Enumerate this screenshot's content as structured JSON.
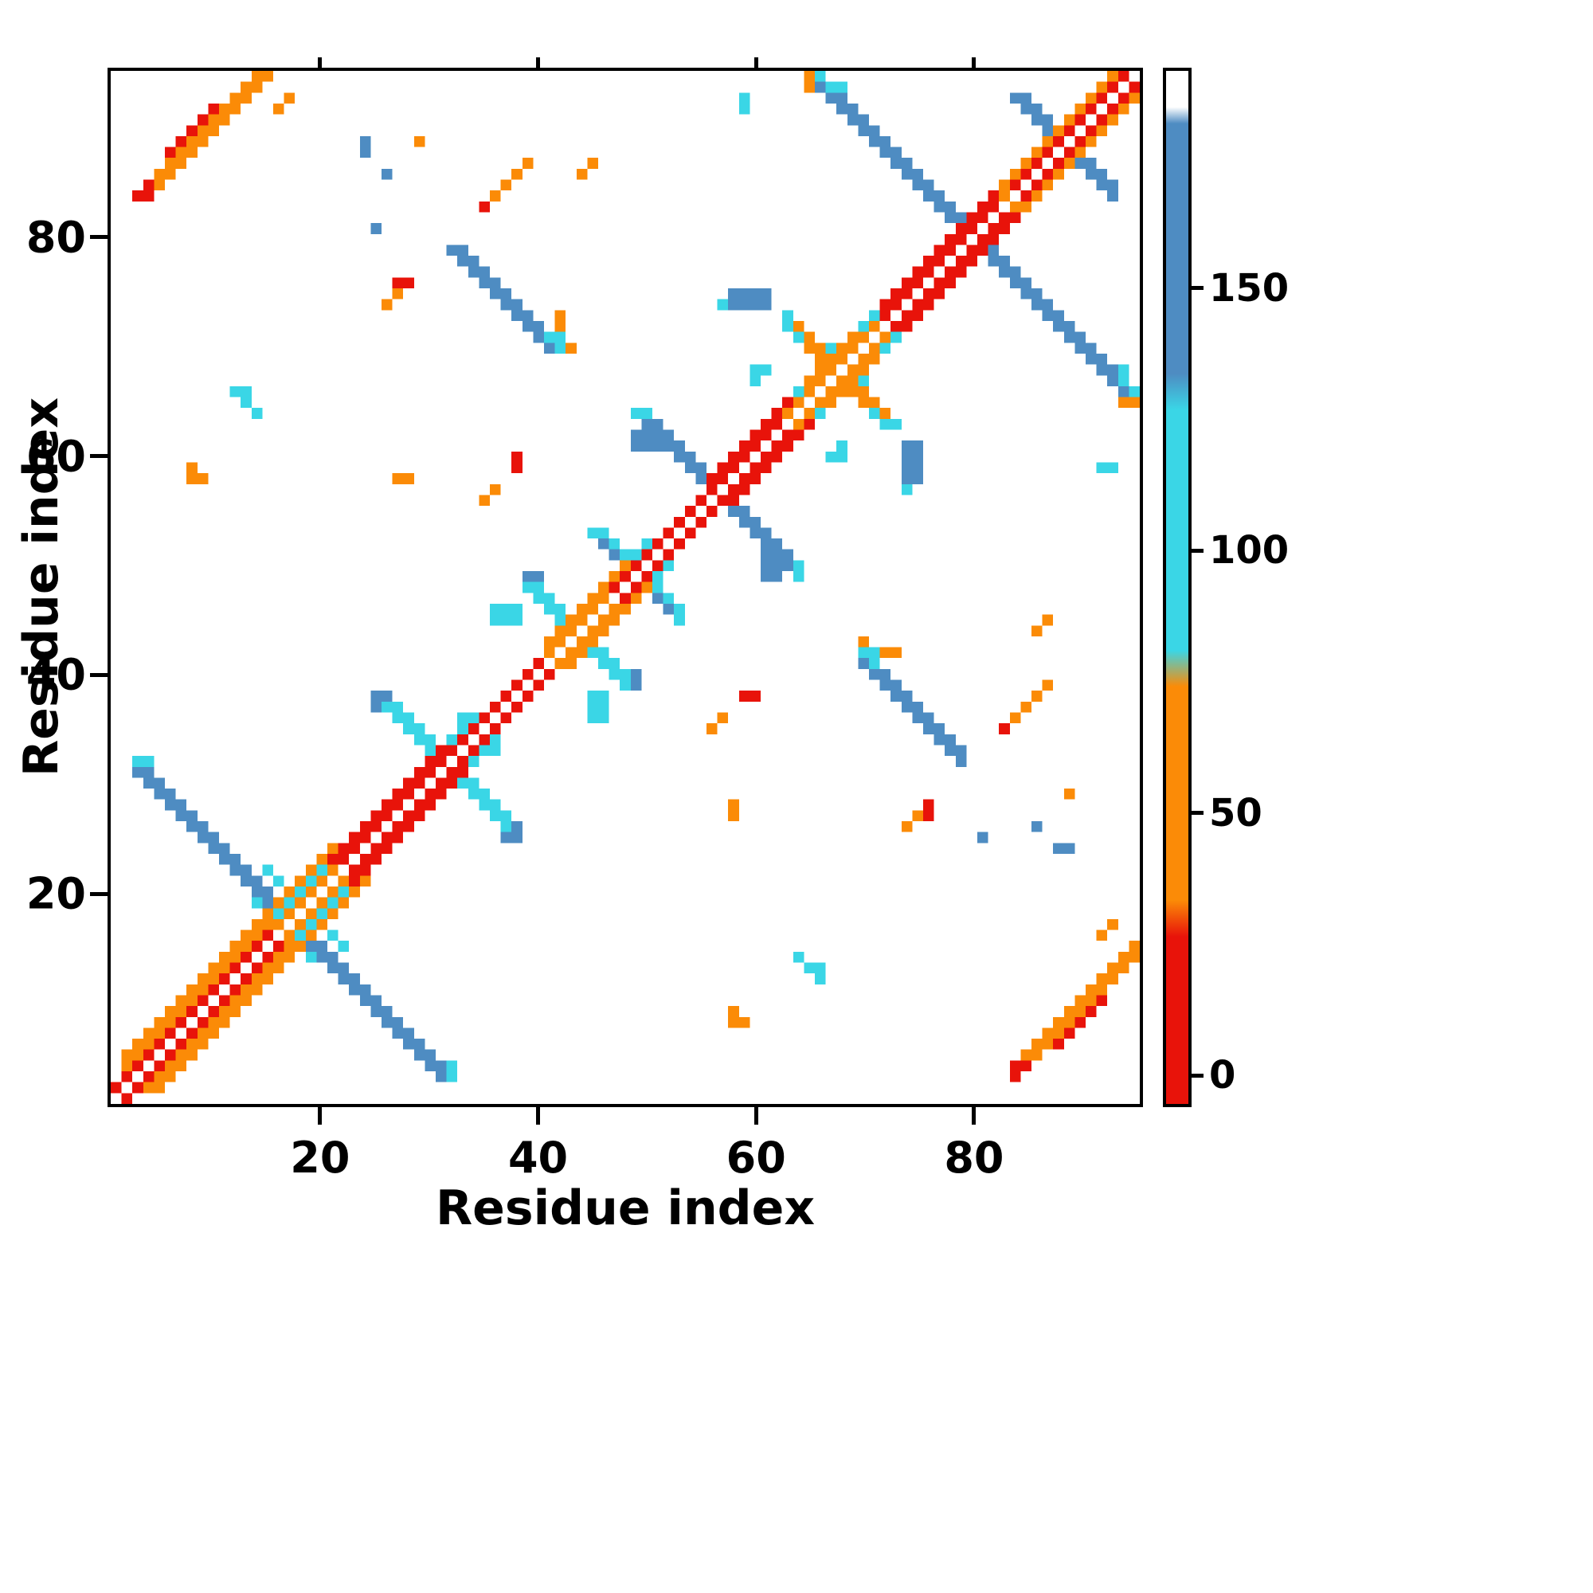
{
  "axes": {
    "x_label": "Residue index",
    "y_label": "Residue index",
    "x_ticks": [
      20,
      40,
      60,
      80
    ],
    "y_ticks": [
      20,
      40,
      60,
      80
    ]
  },
  "colorbar": {
    "ticks": [
      0,
      50,
      100,
      150
    ],
    "vmin": -6,
    "vmax": 192,
    "gradient_stops": [
      [
        0.0,
        "#e8130a"
      ],
      [
        0.162,
        "#e8130a"
      ],
      [
        0.197,
        "#fb8b07"
      ],
      [
        0.404,
        "#fb8b07"
      ],
      [
        0.439,
        "#3ad6e6"
      ],
      [
        0.672,
        "#3ad6e6"
      ],
      [
        0.707,
        "#4e8cc2"
      ],
      [
        0.949,
        "#4e8cc2"
      ],
      [
        0.965,
        "#ffffff"
      ],
      [
        1.0,
        "#ffffff"
      ]
    ]
  },
  "chart_data": {
    "type": "heatmap",
    "title": "",
    "xlabel": "Residue index",
    "ylabel": "Residue index",
    "n": 95,
    "x_range": [
      1,
      95
    ],
    "y_range": [
      1,
      95
    ],
    "background": "#ffffff",
    "diagonal_color": "#ffffff",
    "symmetric": true,
    "description": "Symmetric residue-residue contact map; colored by value per colorbar (red ~0, orange ~50, cyan ~100, blue ~150, white = no contact). Features are mirrored across the main diagonal; exact diagonal cells are white.",
    "palette": {
      "red": {
        "hex": "#e8130a",
        "approx_value": 10
      },
      "orange": {
        "hex": "#fb8b07",
        "approx_value": 50
      },
      "cyan": {
        "hex": "#3ad6e6",
        "approx_value": 100
      },
      "blue": {
        "hex": "#4e8cc2",
        "approx_value": 155
      },
      "none": {
        "hex": "#ffffff",
        "approx_value": null
      }
    },
    "features": [
      {
        "kind": "anti",
        "x": 3,
        "y": 31,
        "len": 13,
        "t": 2,
        "c": "blue"
      },
      {
        "kind": "cells",
        "pts": [
          [
            3,
            32
          ],
          [
            4,
            32
          ],
          [
            14,
            19
          ],
          [
            15,
            18
          ]
        ],
        "c": "cyan"
      },
      {
        "kind": "anti",
        "x": 15,
        "y": 22,
        "len": 4,
        "t": 1,
        "c": "cyan"
      },
      {
        "kind": "anti",
        "x": 26,
        "y": 37,
        "len": 7,
        "t": 2,
        "c": "cyan"
      },
      {
        "kind": "cells",
        "pts": [
          [
            25,
            37
          ],
          [
            25,
            38
          ],
          [
            26,
            38
          ]
        ],
        "c": "blue"
      },
      {
        "kind": "rect",
        "x": 33,
        "y": 34,
        "w": 1,
        "h": 3,
        "c": "cyan"
      },
      {
        "kind": "anti",
        "x": 32,
        "y": 79,
        "len": 10,
        "t": 2,
        "c": "blue"
      },
      {
        "kind": "cells",
        "pts": [
          [
            41,
            71
          ],
          [
            42,
            70
          ],
          [
            42,
            71
          ]
        ],
        "c": "cyan"
      },
      {
        "kind": "cells",
        "pts": [
          [
            26,
            74
          ],
          [
            27,
            75
          ],
          [
            42,
            72
          ],
          [
            42,
            73
          ],
          [
            43,
            70
          ]
        ],
        "c": "orange"
      },
      {
        "kind": "cells",
        "pts": [
          [
            27,
            76
          ],
          [
            28,
            76
          ]
        ],
        "c": "red"
      },
      {
        "kind": "anti",
        "x": 39,
        "y": 48,
        "len": 8,
        "t": 2,
        "c": "cyan"
      },
      {
        "kind": "rect",
        "x": 36,
        "y": 45,
        "w": 3,
        "h": 2,
        "c": "cyan"
      },
      {
        "kind": "cells",
        "pts": [
          [
            39,
            49
          ],
          [
            40,
            49
          ]
        ],
        "c": "blue"
      },
      {
        "kind": "anti",
        "x": 45,
        "y": 53,
        "len": 5,
        "t": 2,
        "c": "cyan"
      },
      {
        "kind": "cells",
        "pts": [
          [
            46,
            52
          ],
          [
            47,
            51
          ]
        ],
        "c": "blue"
      },
      {
        "kind": "anti",
        "x": 50,
        "y": 63,
        "len": 11,
        "t": 2,
        "c": "blue"
      },
      {
        "kind": "rect",
        "x": 49,
        "y": 61,
        "w": 3,
        "h": 2,
        "c": "blue"
      },
      {
        "kind": "cells",
        "pts": [
          [
            49,
            64
          ],
          [
            50,
            64
          ]
        ],
        "c": "cyan"
      },
      {
        "kind": "anti",
        "x": 63,
        "y": 72,
        "len": 7,
        "t": 2,
        "c": "orange"
      },
      {
        "kind": "cells",
        "pts": [
          [
            63,
            72
          ],
          [
            64,
            71
          ],
          [
            63,
            73
          ],
          [
            67,
            70
          ]
        ],
        "c": "cyan"
      },
      {
        "kind": "cells",
        "pts": [
          [
            60,
            67
          ],
          [
            60,
            68
          ],
          [
            61,
            68
          ]
        ],
        "c": "cyan"
      },
      {
        "kind": "anti",
        "x": 66,
        "y": 94,
        "len": 13,
        "t": 2,
        "c": "blue"
      },
      {
        "kind": "cells",
        "pts": [
          [
            66,
            95
          ],
          [
            67,
            94
          ],
          [
            68,
            94
          ]
        ],
        "c": "cyan"
      },
      {
        "kind": "cells",
        "pts": [
          [
            65,
            95
          ],
          [
            65,
            94
          ]
        ],
        "c": "orange"
      },
      {
        "kind": "anti",
        "x": 84,
        "y": 93,
        "len": 4,
        "t": 2,
        "c": "blue"
      },
      {
        "kind": "diag",
        "x": 3,
        "y": 84,
        "len": 12,
        "t": 2,
        "c": "orange"
      },
      {
        "kind": "diag",
        "x": 6,
        "y": 88,
        "len": 5,
        "t": 1,
        "c": "red"
      },
      {
        "kind": "cells",
        "pts": [
          [
            3,
            84
          ],
          [
            4,
            85
          ],
          [
            4,
            84
          ]
        ],
        "c": "red"
      },
      {
        "kind": "cells",
        "pts": [
          [
            16,
            92
          ],
          [
            17,
            93
          ]
        ],
        "c": "orange"
      },
      {
        "kind": "cells",
        "pts": [
          [
            8,
            58
          ],
          [
            8,
            59
          ],
          [
            9,
            58
          ]
        ],
        "c": "orange"
      },
      {
        "kind": "cells",
        "pts": [
          [
            13,
            65
          ],
          [
            14,
            64
          ],
          [
            12,
            66
          ],
          [
            13,
            66
          ]
        ],
        "c": "cyan"
      },
      {
        "kind": "cells",
        "pts": [
          [
            24,
            88
          ],
          [
            24,
            89
          ],
          [
            26,
            86
          ],
          [
            25,
            81
          ]
        ],
        "c": "blue"
      },
      {
        "kind": "diag",
        "x": 36,
        "y": 84,
        "len": 4,
        "t": 1,
        "c": "orange"
      },
      {
        "kind": "cells",
        "pts": [
          [
            35,
            83
          ]
        ],
        "c": "red"
      },
      {
        "kind": "cells",
        "pts": [
          [
            44,
            86
          ],
          [
            45,
            87
          ],
          [
            29,
            89
          ]
        ],
        "c": "orange"
      },
      {
        "kind": "cells",
        "pts": [
          [
            35,
            56
          ],
          [
            36,
            57
          ],
          [
            27,
            58
          ],
          [
            28,
            58
          ]
        ],
        "c": "orange"
      },
      {
        "kind": "cells",
        "pts": [
          [
            38,
            59
          ],
          [
            38,
            60
          ]
        ],
        "c": "red"
      },
      {
        "kind": "rect",
        "x": 58,
        "y": 74,
        "w": 4,
        "h": 2,
        "c": "blue"
      },
      {
        "kind": "cells",
        "pts": [
          [
            57,
            74
          ]
        ],
        "c": "cyan"
      },
      {
        "kind": "cells",
        "pts": [
          [
            59,
            92
          ],
          [
            59,
            93
          ]
        ],
        "c": "cyan"
      },
      {
        "kind": "band",
        "a": 2,
        "b": 21,
        "hw": 3,
        "c": "orange"
      },
      {
        "kind": "band",
        "a": 41,
        "b": 50,
        "hw": 2,
        "c": "orange"
      },
      {
        "kind": "band",
        "a": 63,
        "b": 72,
        "hw": 2,
        "c": "orange"
      },
      {
        "kind": "band",
        "a": 82,
        "b": 95,
        "hw": 2,
        "c": "orange"
      },
      {
        "kind": "band",
        "a": 16,
        "b": 21,
        "hw": 2,
        "c": "cyan"
      },
      {
        "kind": "band",
        "a": 29,
        "b": 34,
        "hw": 2,
        "c": "cyan"
      },
      {
        "kind": "band",
        "a": 1,
        "b": 16,
        "hw": 1,
        "c": "red"
      },
      {
        "kind": "band",
        "a": 21,
        "b": 31,
        "hw": 2,
        "c": "red"
      },
      {
        "kind": "band",
        "a": 31,
        "b": 41,
        "hw": 1,
        "c": "red"
      },
      {
        "kind": "band",
        "a": 46,
        "b": 56,
        "hw": 1,
        "c": "red"
      },
      {
        "kind": "band",
        "a": 56,
        "b": 63,
        "hw": 2,
        "c": "red"
      },
      {
        "kind": "band",
        "a": 72,
        "b": 82,
        "hw": 2,
        "c": "red"
      },
      {
        "kind": "band",
        "a": 84,
        "b": 95,
        "hw": 1,
        "c": "red"
      },
      {
        "kind": "band",
        "a": 16,
        "b": 21,
        "hw": 1,
        "c": "orange"
      },
      {
        "kind": "band",
        "a": 41,
        "b": 46,
        "hw": 1,
        "c": "orange"
      },
      {
        "kind": "band",
        "a": 63,
        "b": 70,
        "hw": 1,
        "c": "orange"
      },
      {
        "kind": "cells",
        "pts": [
          [
            70,
            72
          ],
          [
            71,
            73
          ],
          [
            64,
            66
          ],
          [
            49,
            51
          ],
          [
            50,
            52
          ]
        ],
        "c": "cyan"
      }
    ]
  }
}
